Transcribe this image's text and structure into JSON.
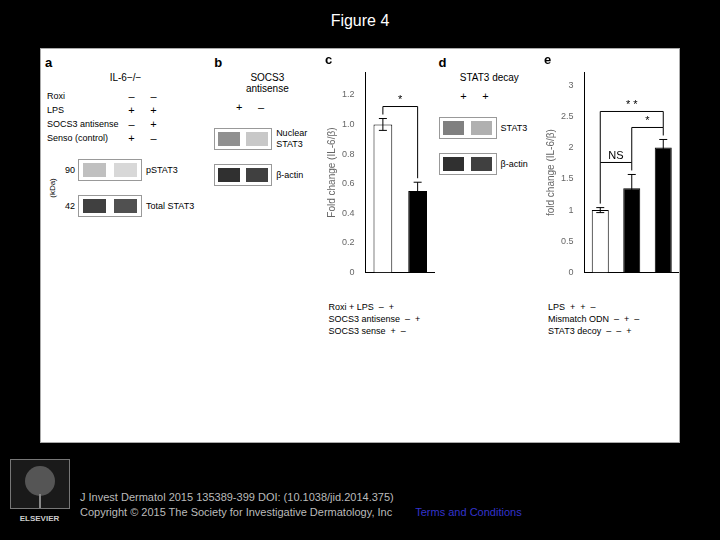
{
  "title": "Figure 4",
  "annotations": [
    "J Invest Dermatol 2015 135389-399 DOI: (10.1038/jid.2014.375)",
    "Copyright © 2015 The Society for Investigative Dermatology, Inc "
  ],
  "link": "Terms and Conditions",
  "logo": "ELSEVIER",
  "chart_data": [
    {
      "type": "blot",
      "title": "a",
      "subtitle": "IL-6−/−",
      "conditions": [
        [
          "Roxi",
          "–",
          "–"
        ],
        [
          "LPS",
          "+",
          "+"
        ],
        [
          "SOCS3 antisense",
          "–",
          "+"
        ],
        [
          "Senso (control)",
          "+",
          "–"
        ]
      ],
      "ylabel": "(kDa)",
      "bands": [
        {
          "value": 90,
          "name": [
            "pSTAT3"
          ],
          "colors": [
            "#c0c0c0",
            "#d8d8d8"
          ]
        },
        {
          "value": 42,
          "name": [
            "Total STAT3"
          ],
          "colors": [
            "#404040",
            "#505050"
          ]
        }
      ]
    },
    {
      "type": "blot",
      "title": "b",
      "subtitle": [
        "SOCS3",
        "antisense"
      ],
      "conditions": [
        [
          "+",
          "–"
        ]
      ],
      "bands": [
        {
          "name": [
            "Nuclear",
            "STAT3"
          ],
          "colors": [
            "#909090",
            "#c8c8c8"
          ]
        },
        {
          "name": [
            "β-actin"
          ],
          "colors": [
            "#303030",
            "#404040"
          ]
        }
      ]
    },
    {
      "type": "bar",
      "title": "c",
      "categories": [
        null,
        null
      ],
      "values": [
        1.0,
        0.55
      ],
      "errors": [
        0.04,
        0.06
      ],
      "colors": [
        "#ffffff",
        "#000000"
      ],
      "ylabel": "Fold change (IL-6/β)",
      "ylim": [
        0,
        1.35
      ],
      "yticks": [
        0,
        0.2,
        0.4,
        0.6,
        0.8,
        {
          "value": 1.0,
          "label": "1.0"
        },
        1.2
      ],
      "grid": false,
      "brackets": [
        {
          "bars": [
            0,
            1
          ],
          "label": "*"
        }
      ],
      "annotations": [
        "Roxi + LPS  –  +",
        "SOCS3 antisense  –  +",
        "SOCS3 sense  +  –"
      ]
    },
    {
      "type": "blot",
      "title": "d",
      "subtitle": "STAT3 decay",
      "conditions": [
        [
          "+",
          "+"
        ]
      ],
      "bands": [
        {
          "name": [
            "STAT3"
          ],
          "colors": [
            "#808080",
            "#b0b0b0"
          ]
        },
        {
          "name": [
            "β-actin"
          ],
          "colors": [
            "#303030",
            "#404040"
          ]
        }
      ]
    },
    {
      "type": "bar",
      "title": "e",
      "categories": [
        null,
        null,
        null
      ],
      "values": [
        1.0,
        1.35,
        2.0
      ],
      "errors": [
        0.04,
        0.22,
        0.13
      ],
      "colors": [
        "#ffffff",
        "#000000",
        "#000000"
      ],
      "ylabel": "fold change (IL-6/β)",
      "ylim": [
        0,
        3.2
      ],
      "yticks": [
        0,
        0.5,
        1,
        1.5,
        2,
        2.5,
        3
      ],
      "grid": false,
      "brackets": [
        {
          "bars": [
            0,
            1
          ],
          "label": "NS"
        },
        {
          "bars": [
            1,
            2
          ],
          "label": "*"
        },
        {
          "bars": [
            0,
            2
          ],
          "label": "* *"
        }
      ],
      "annotations": [
        "LPS  +  +  –",
        "Mismatch ODN  –  +  –",
        "STAT3 decoy  –  –  +"
      ]
    }
  ]
}
